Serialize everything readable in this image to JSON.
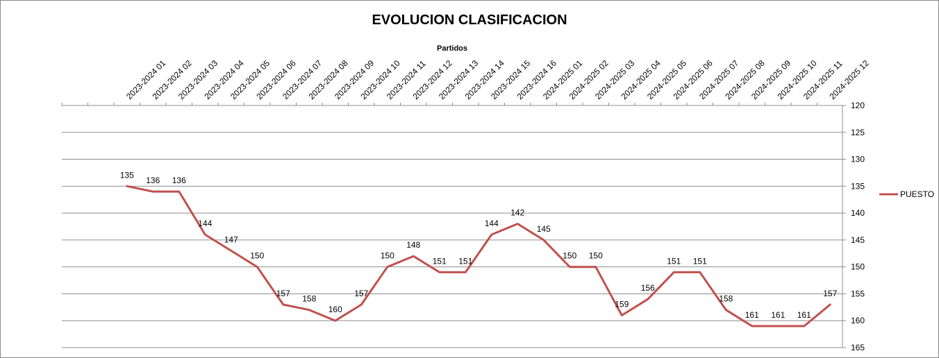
{
  "chart_data": {
    "type": "line",
    "title": "EVOLUCION CLASIFICACION",
    "xlabel": "Partidos",
    "ylabel": "",
    "x_axis_position": "top",
    "y_axis_position": "right",
    "y_inverted": true,
    "ylim": [
      120,
      165
    ],
    "y_ticks": [
      120,
      125,
      130,
      135,
      140,
      145,
      150,
      155,
      160,
      165
    ],
    "grid": true,
    "legend_position": "right",
    "leading_blank_slots": 2,
    "categories": [
      "2023-2024 01",
      "2023-2024 02",
      "2023-2024 03",
      "2023-2024 04",
      "2023-2024 05",
      "2023-2024 06",
      "2023-2024 07",
      "2023-2024 08",
      "2023-2024 09",
      "2023-2024 10",
      "2023-2024 11",
      "2023-2024 12",
      "2023-2024 13",
      "2023-2024 14",
      "2023-2024 15",
      "2023-2024 16",
      "2024-2025 01",
      "2024-2025 02",
      "2024-2025 03",
      "2024-2025 04",
      "2024-2025 05",
      "2024-2025 06",
      "2024-2025 07",
      "2024-2025 08",
      "2024-2025 09",
      "2024-2025 10",
      "2024-2025 11",
      "2024-2025 12"
    ],
    "series": [
      {
        "name": "PUESTO",
        "color": "#C0504D",
        "values": [
          135,
          136,
          136,
          144,
          147,
          150,
          157,
          158,
          160,
          157,
          150,
          148,
          151,
          151,
          144,
          142,
          145,
          150,
          150,
          159,
          156,
          151,
          151,
          158,
          161,
          161,
          161,
          157
        ]
      }
    ]
  }
}
